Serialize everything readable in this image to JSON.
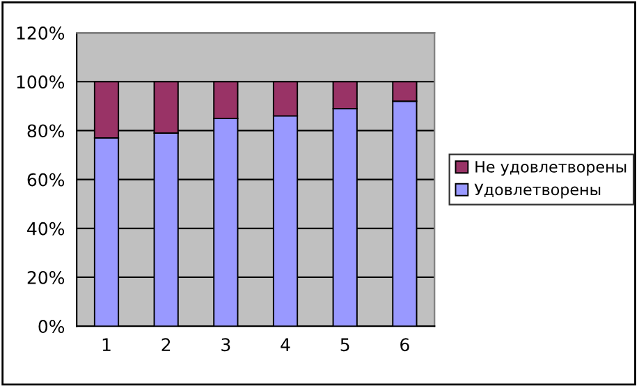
{
  "chart_data": {
    "type": "bar",
    "stacked": true,
    "categories": [
      "1",
      "2",
      "3",
      "4",
      "5",
      "6"
    ],
    "series": [
      {
        "name": "Удовлетворены",
        "color": "#9999ff",
        "values": [
          77,
          79,
          85,
          86,
          89,
          92
        ]
      },
      {
        "name": "Не удовлетворены",
        "color": "#993366",
        "values": [
          23,
          21,
          15,
          14,
          11,
          8
        ]
      }
    ],
    "ylim": [
      0,
      120
    ],
    "yticks": [
      {
        "value": 0,
        "label": "0%"
      },
      {
        "value": 20,
        "label": "20%"
      },
      {
        "value": 40,
        "label": "40%"
      },
      {
        "value": 60,
        "label": "60%"
      },
      {
        "value": 80,
        "label": "80%"
      },
      {
        "value": 100,
        "label": "100%"
      },
      {
        "value": 120,
        "label": "120%"
      }
    ],
    "grid": "y",
    "legend": "right"
  }
}
